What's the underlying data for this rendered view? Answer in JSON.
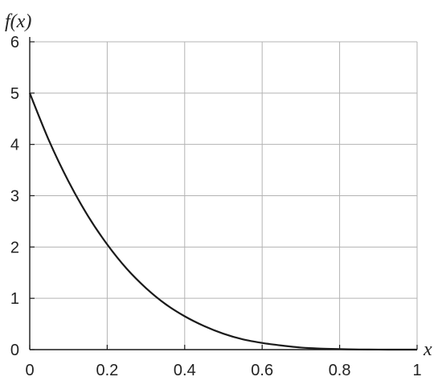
{
  "chart_data": {
    "type": "line",
    "xlabel": "x",
    "ylabel": "f(x)",
    "xlim": [
      0,
      1
    ],
    "ylim": [
      0,
      6
    ],
    "x_ticks": [
      0,
      0.2,
      0.4,
      0.6,
      0.8,
      1
    ],
    "x_tick_labels": [
      "0",
      "0.2",
      "0.4",
      "0.6",
      "0.8",
      "1"
    ],
    "y_ticks": [
      0,
      1,
      2,
      3,
      4,
      5,
      6
    ],
    "y_tick_labels": [
      "0",
      "1",
      "2",
      "3",
      "4",
      "5",
      "6"
    ],
    "grid": true,
    "series": [
      {
        "color": "#1a1a1a",
        "x": [
          0,
          0.05,
          0.1,
          0.15,
          0.2,
          0.25,
          0.3,
          0.35,
          0.4,
          0.45,
          0.5,
          0.55,
          0.6,
          0.65,
          0.7,
          0.75,
          0.8,
          0.85,
          0.9,
          0.95,
          1
        ],
        "y": [
          5,
          4.07,
          3.28,
          2.61,
          2.05,
          1.58,
          1.2,
          0.89,
          0.65,
          0.46,
          0.31,
          0.2,
          0.13,
          0.08,
          0.04,
          0.02,
          0.01,
          0.003,
          0.001,
          0,
          0
        ]
      }
    ]
  }
}
